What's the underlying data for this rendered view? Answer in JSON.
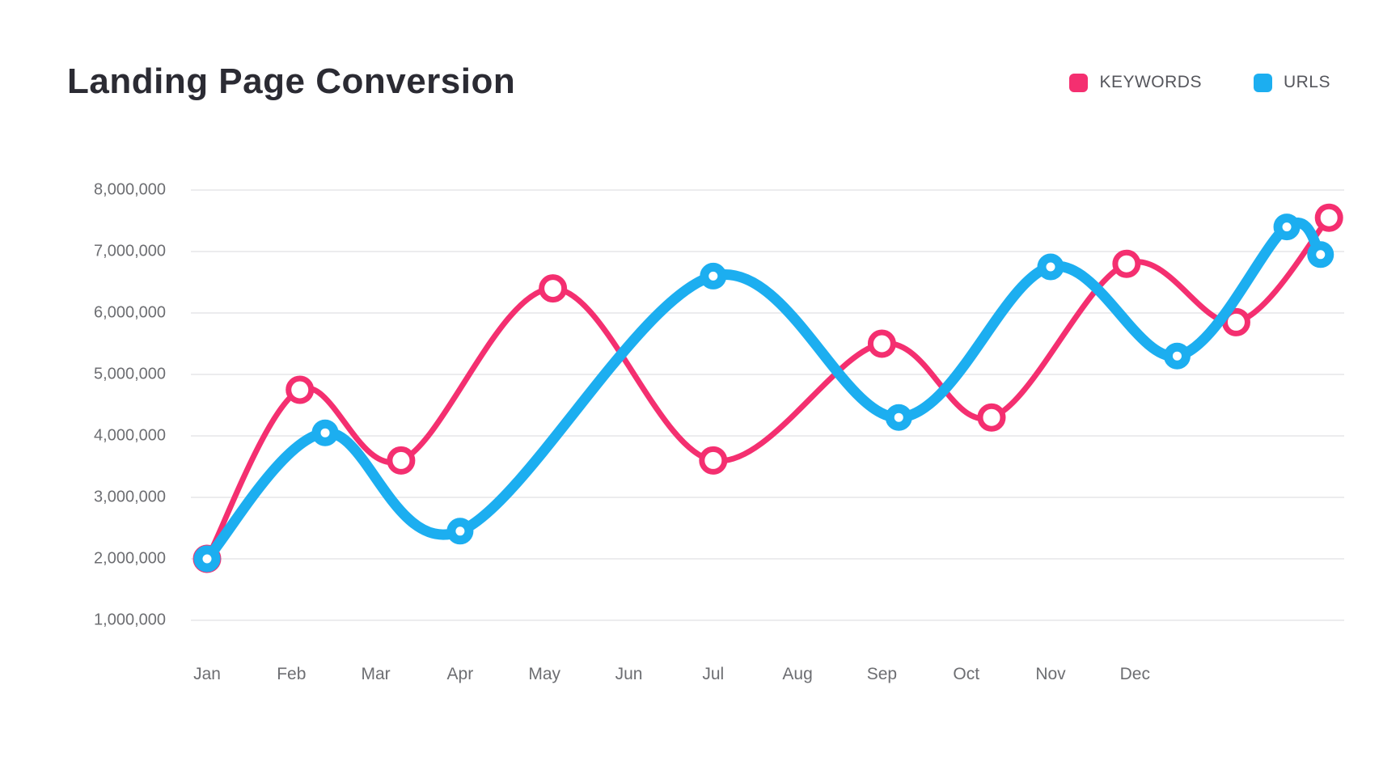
{
  "header": {
    "title": "Landing Page Conversion"
  },
  "legend": {
    "items": [
      {
        "label": "KEYWORDS",
        "color": "#f42f70"
      },
      {
        "label": "URLS",
        "color": "#1caef0"
      }
    ]
  },
  "chart_data": {
    "type": "line",
    "title": "Landing Page Conversion",
    "subtitle": "",
    "x_tick_labels": [
      "Jan",
      "Feb",
      "Mar",
      "Apr",
      "May",
      "Jun",
      "Jul",
      "Aug",
      "Sep",
      "Oct",
      "Nov",
      "Dec"
    ],
    "y_tick_labels": [
      "8,000,000",
      "7,000,000",
      "6,000,000",
      "5,000,000",
      "4,000,000",
      "3,000,000",
      "2,000,000",
      "1,000,000"
    ],
    "y_range": [
      1000000,
      8000000
    ],
    "y_values_in": "millions",
    "x_unit": "month-index (0 = Jan, fractional positions as drawn; curve extends past Dec)",
    "x_domain": [
      0,
      13.5
    ],
    "grid": "horizontal-only",
    "legend_position": "top-right",
    "curve": "smooth-spline-with-circle-markers",
    "series": [
      {
        "name": "KEYWORDS",
        "color": "#f42f70",
        "points": [
          {
            "x": 0.0,
            "y": 2.0
          },
          {
            "x": 1.1,
            "y": 4.75
          },
          {
            "x": 2.3,
            "y": 3.6
          },
          {
            "x": 4.1,
            "y": 6.4
          },
          {
            "x": 6.0,
            "y": 3.6
          },
          {
            "x": 8.0,
            "y": 5.5
          },
          {
            "x": 9.3,
            "y": 4.3
          },
          {
            "x": 10.9,
            "y": 6.8
          },
          {
            "x": 12.2,
            "y": 5.85
          },
          {
            "x": 13.3,
            "y": 7.55
          }
        ]
      },
      {
        "name": "URLS",
        "color": "#1caef0",
        "points": [
          {
            "x": 0.0,
            "y": 2.0
          },
          {
            "x": 1.4,
            "y": 4.05
          },
          {
            "x": 3.0,
            "y": 2.45
          },
          {
            "x": 6.0,
            "y": 6.6
          },
          {
            "x": 8.2,
            "y": 4.3
          },
          {
            "x": 10.0,
            "y": 6.75
          },
          {
            "x": 11.5,
            "y": 5.3
          },
          {
            "x": 12.8,
            "y": 7.4
          },
          {
            "x": 13.2,
            "y": 6.95
          }
        ]
      }
    ]
  }
}
